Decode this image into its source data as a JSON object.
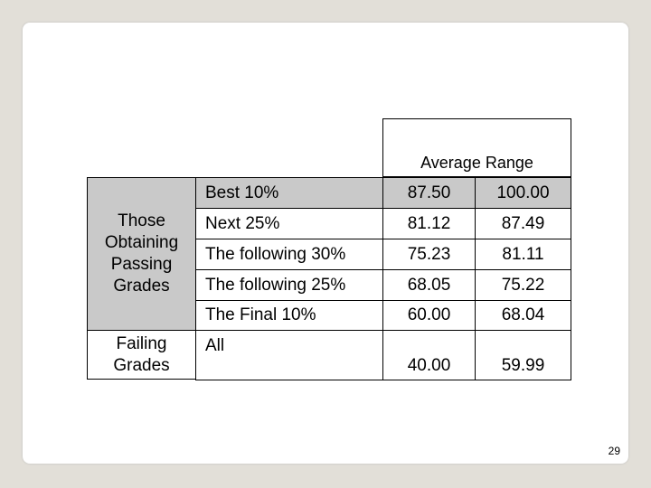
{
  "table": {
    "header": "Average Range",
    "groups": [
      "Those Obtaining Passing Grades",
      "Failing Grades"
    ],
    "rows": [
      [
        "Best 10%",
        "87.50",
        "100.00"
      ],
      [
        "Next 25%",
        "81.12",
        "87.49"
      ],
      [
        "The following 30%",
        "75.23",
        "81.11"
      ],
      [
        "The following 25%",
        "68.05",
        "75.22"
      ],
      [
        "The Final 10%",
        "60.00",
        "68.04"
      ],
      [
        "All",
        "40.00",
        "59.99"
      ]
    ]
  },
  "page_number": "29"
}
